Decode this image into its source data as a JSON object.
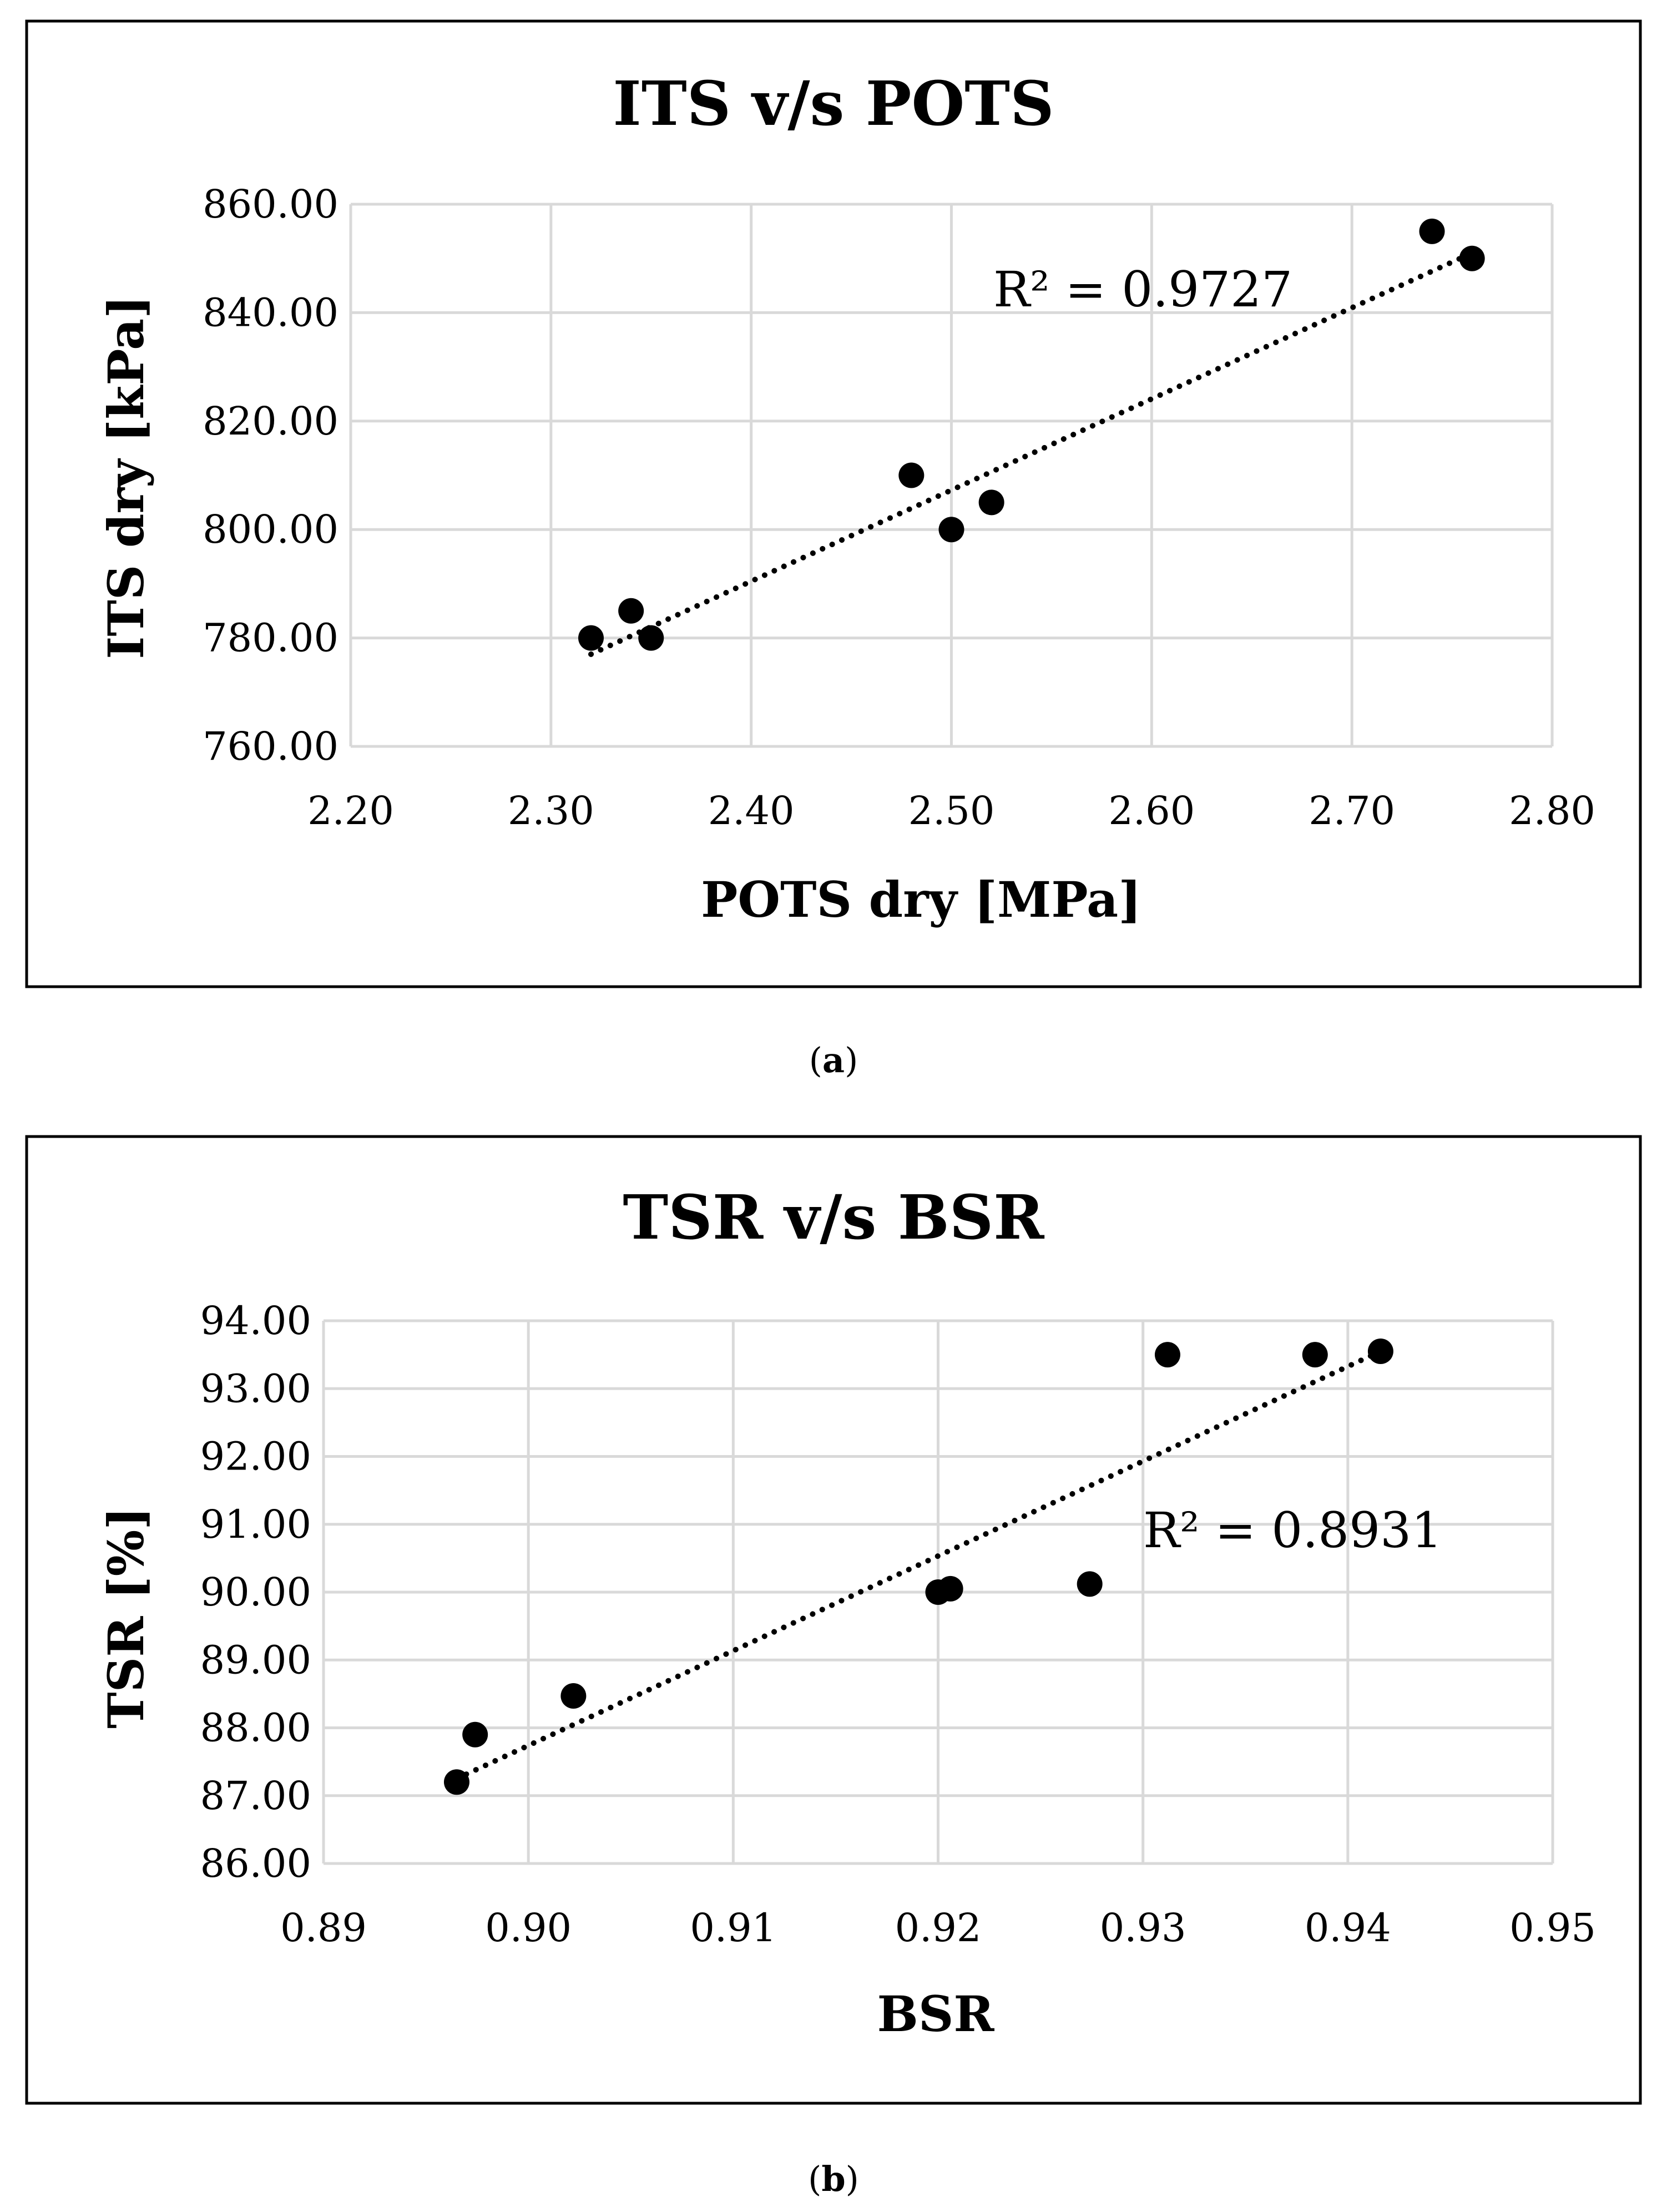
{
  "chart_data": [
    {
      "type": "scatter",
      "title": "ITS v/s POTS",
      "xlabel": "POTS dry [MPa]",
      "ylabel": "ITS dry [kPa]",
      "xlim": [
        2.2,
        2.8
      ],
      "ylim": [
        760,
        860
      ],
      "xticks": [
        "2.20",
        "2.30",
        "2.40",
        "2.50",
        "2.60",
        "2.70",
        "2.80"
      ],
      "yticks": [
        "760.00",
        "780.00",
        "800.00",
        "820.00",
        "840.00",
        "860.00"
      ],
      "grid": true,
      "series": [
        {
          "name": "ITS dry",
          "x": [
            2.32,
            2.34,
            2.35,
            2.48,
            2.5,
            2.52,
            2.74,
            2.76
          ],
          "y": [
            780,
            785,
            780,
            810,
            800,
            805,
            855,
            850
          ]
        }
      ],
      "trendline": {
        "type": "linear-dotted",
        "x": [
          2.32,
          2.76
        ],
        "y": [
          777,
          851
        ]
      },
      "annotation": "R² = 0.9727",
      "caption": {
        "letter": "a"
      }
    },
    {
      "type": "scatter",
      "title": "TSR v/s BSR",
      "xlabel": "BSR",
      "ylabel": "TSR [%]",
      "xlim": [
        0.89,
        0.95
      ],
      "ylim": [
        86,
        94
      ],
      "xticks": [
        "0.89",
        "0.90",
        "0.91",
        "0.92",
        "0.93",
        "0.94",
        "0.95"
      ],
      "yticks": [
        "86.00",
        "87.00",
        "88.00",
        "89.00",
        "90.00",
        "91.00",
        "92.00",
        "93.00",
        "94.00"
      ],
      "grid": true,
      "series": [
        {
          "name": "TSR",
          "x": [
            0.8965,
            0.8974,
            0.9022,
            0.92,
            0.9206,
            0.9274,
            0.9312,
            0.9384,
            0.9416
          ],
          "y": [
            87.2,
            87.9,
            88.47,
            90.0,
            90.05,
            90.12,
            93.5,
            93.5,
            93.55
          ]
        }
      ],
      "trendline": {
        "type": "linear-dotted",
        "x": [
          0.8965,
          0.9416
        ],
        "y": [
          87.25,
          93.55
        ]
      },
      "annotation": "R² = 0.8931",
      "caption": {
        "letter": "b"
      }
    }
  ]
}
